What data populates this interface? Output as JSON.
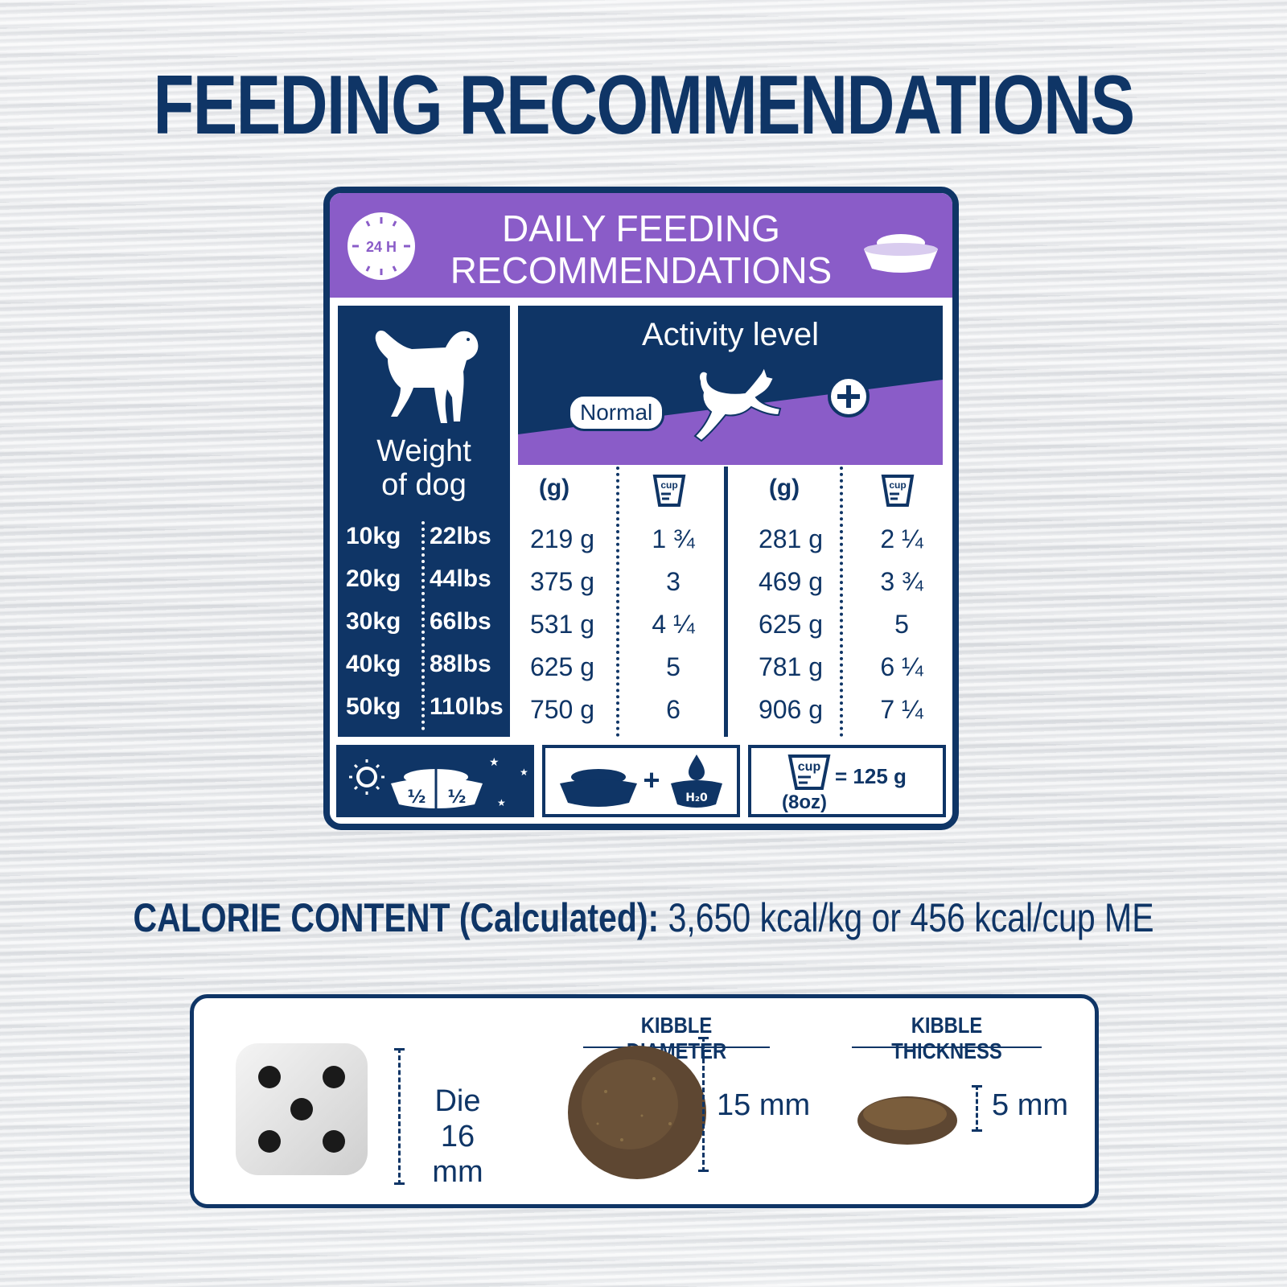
{
  "title": "FEEDING RECOMMENDATIONS",
  "card": {
    "clock_label": "24 H",
    "header_line1": "DAILY FEEDING",
    "header_line2": "RECOMMENDATIONS",
    "weight_label_line1": "Weight",
    "weight_label_line2": "of dog",
    "activity_title": "Activity level",
    "activity_normal": "Normal",
    "col_g": "(g)",
    "cup_icon_text": "cup",
    "rows": [
      {
        "kg": "10kg",
        "lbs": "22lbs",
        "normal_g": "219 g",
        "normal_cup": "1 ¾",
        "plus_g": "281 g",
        "plus_cup": "2 ¼"
      },
      {
        "kg": "20kg",
        "lbs": "44lbs",
        "normal_g": "375 g",
        "normal_cup": "3",
        "plus_g": "469 g",
        "plus_cup": "3 ¾"
      },
      {
        "kg": "30kg",
        "lbs": "66lbs",
        "normal_g": "531 g",
        "normal_cup": "4 ¼",
        "plus_g": "625 g",
        "plus_cup": "5"
      },
      {
        "kg": "40kg",
        "lbs": "88lbs",
        "normal_g": "625 g",
        "normal_cup": "5",
        "plus_g": "781 g",
        "plus_cup": "6 ¼"
      },
      {
        "kg": "50kg",
        "lbs": "110lbs",
        "normal_g": "750 g",
        "normal_cup": "6",
        "plus_g": "906 g",
        "plus_cup": "7 ¼"
      }
    ],
    "footer": {
      "half_label": "½",
      "plus_sign": "+",
      "water_label": "H₂0",
      "cup_equals": "= 125 g",
      "cup_oz": "(8oz)"
    }
  },
  "calorie": {
    "label": "CALORIE CONTENT (Calculated):",
    "value": "3,650 kcal/kg or 456 kcal/cup ME"
  },
  "kibble": {
    "die_label_line1": "Die",
    "die_label_line2": "16 mm",
    "diameter_label": "KIBBLE DIAMETER",
    "diameter_value": "15 mm",
    "thickness_label": "KIBBLE THICKNESS",
    "thickness_value": "5 mm"
  },
  "colors": {
    "navy": "#0f3566",
    "purple": "#8a5cc8",
    "white": "#ffffff"
  }
}
